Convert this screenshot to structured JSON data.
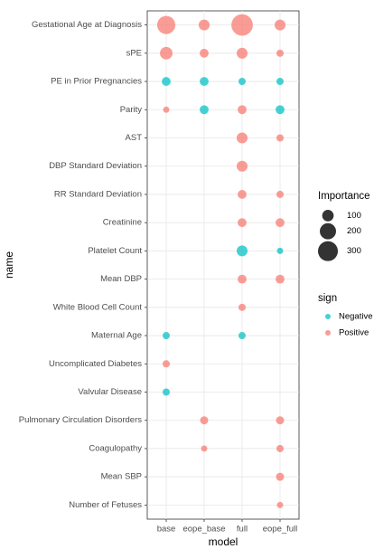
{
  "chart_data": {
    "type": "bubble",
    "x_label": "model",
    "y_label": "name",
    "x_categories": [
      "base",
      "eope_base",
      "full",
      "eope_full"
    ],
    "y_categories": [
      "Gestational Age at Diagnosis",
      "sPE",
      "PE in Prior Pregnancies",
      "Parity",
      "AST",
      "DBP Standard Deviation",
      "RR Standard Deviation",
      "Creatinine",
      "Platelet Count",
      "Mean DBP",
      "White Blood Cell Count",
      "Maternal Age",
      "Uncomplicated Diabetes",
      "Valvular Disease",
      "Pulmonary Circulation Disorders",
      "Coagulopathy",
      "Mean SBP",
      "Number of Fetuses"
    ],
    "grid": true,
    "size_legend": {
      "title": "Importance",
      "values": [
        100,
        200,
        300
      ]
    },
    "color_legend_title": "sign",
    "series": [
      {
        "name": "Negative",
        "color": "#00BFC4",
        "x": [
          "base",
          "eope_base",
          "full",
          "eope_full",
          "eope_base",
          "eope_full",
          "full",
          "eope_full",
          "base",
          "full",
          "base"
        ],
        "y": [
          "PE in Prior Pregnancies",
          "PE in Prior Pregnancies",
          "PE in Prior Pregnancies",
          "PE in Prior Pregnancies",
          "Parity",
          "Parity",
          "Platelet Count",
          "Platelet Count",
          "Maternal Age",
          "Maternal Age",
          "Valvular Disease"
        ],
        "size": [
          60,
          60,
          40,
          40,
          60,
          60,
          90,
          30,
          40,
          40,
          40
        ]
      },
      {
        "name": "Positive",
        "color": "#F8766D",
        "x": [
          "base",
          "eope_base",
          "full",
          "eope_full",
          "base",
          "eope_base",
          "full",
          "eope_full",
          "base",
          "full",
          "full",
          "eope_full",
          "full",
          "full",
          "eope_full",
          "full",
          "eope_full",
          "full",
          "eope_full",
          "full",
          "base",
          "eope_base",
          "eope_full",
          "eope_base",
          "eope_full",
          "eope_full",
          "eope_full"
        ],
        "y": [
          "Gestational Age at Diagnosis",
          "Gestational Age at Diagnosis",
          "Gestational Age at Diagnosis",
          "Gestational Age at Diagnosis",
          "sPE",
          "sPE",
          "sPE",
          "sPE",
          "Parity",
          "Parity",
          "AST",
          "AST",
          "DBP Standard Deviation",
          "RR Standard Deviation",
          "RR Standard Deviation",
          "Creatinine",
          "Creatinine",
          "Mean DBP",
          "Mean DBP",
          "White Blood Cell Count",
          "Uncomplicated Diabetes",
          "Pulmonary Circulation Disorders",
          "Pulmonary Circulation Disorders",
          "Coagulopathy",
          "Coagulopathy",
          "Mean SBP",
          "Number of Fetuses"
        ],
        "size": [
          250,
          90,
          350,
          90,
          120,
          60,
          90,
          40,
          30,
          60,
          90,
          40,
          90,
          60,
          40,
          60,
          60,
          60,
          60,
          40,
          40,
          50,
          50,
          30,
          40,
          50,
          30
        ]
      }
    ]
  }
}
